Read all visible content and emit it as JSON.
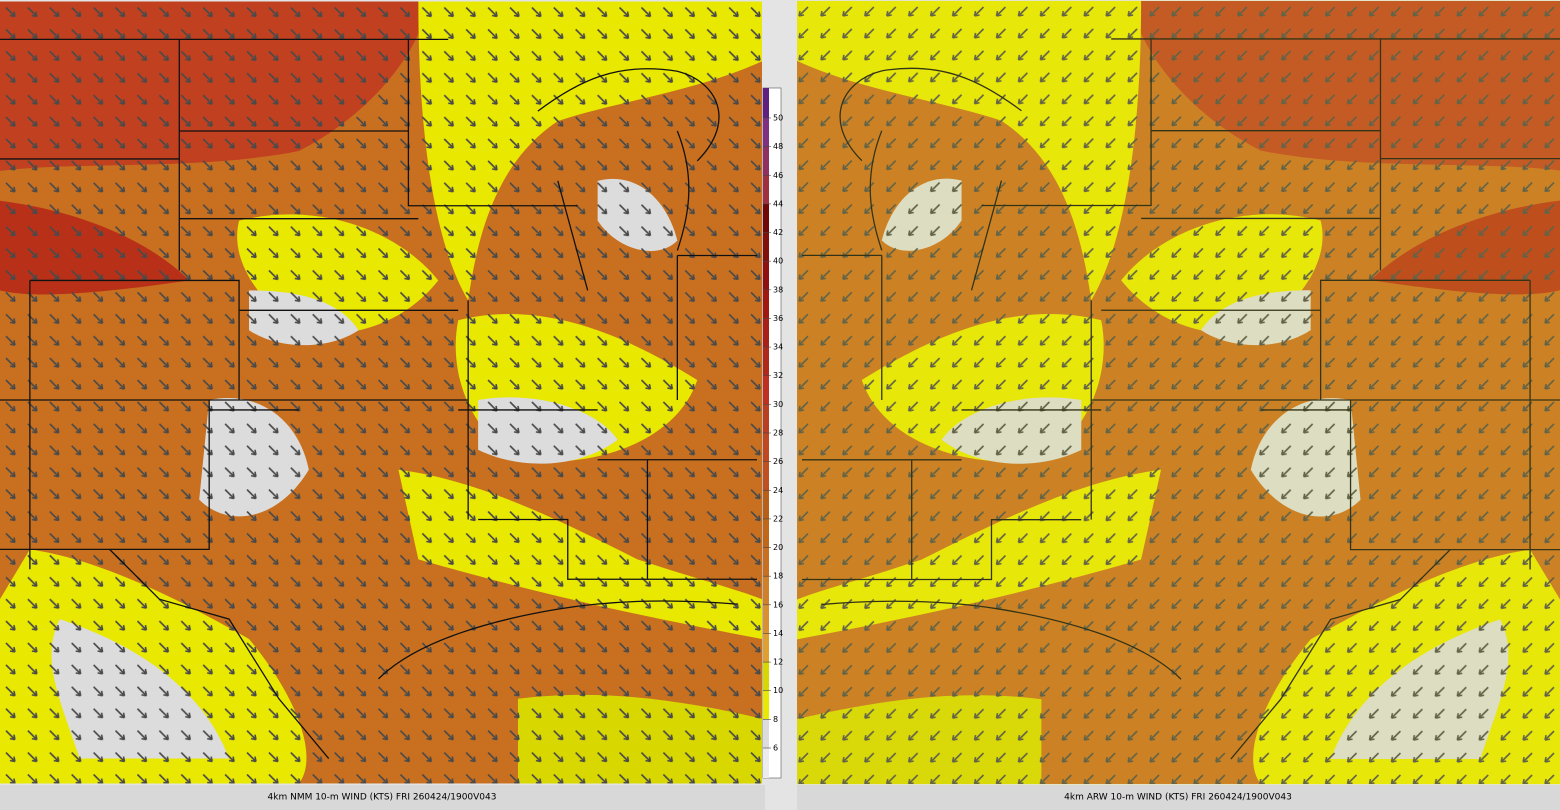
{
  "panels": [
    {
      "caption": "4km NMM 10-m WIND (KTS) FRI 260424/1900V043"
    },
    {
      "caption": "4km ARW 10-m WIND (KTS) FRI 260424/1900V043"
    }
  ],
  "colorbar": {
    "ticks": [
      6,
      8,
      10,
      12,
      14,
      16,
      18,
      20,
      22,
      24,
      26,
      28,
      30,
      32,
      34,
      36,
      38,
      40,
      42,
      44,
      46,
      48,
      50
    ],
    "colors": [
      "#ececec",
      "#dcdcdc",
      "#e8e800",
      "#d8d800",
      "#e0a030",
      "#d89030",
      "#d08028",
      "#c87020",
      "#c06818",
      "#b86018",
      "#c05020",
      "#c04820",
      "#b84020",
      "#c03020",
      "#b02818",
      "#a82018",
      "#a01810",
      "#901010",
      "#801008",
      "#700808",
      "#a03040",
      "#903060",
      "#803080",
      "#602080"
    ]
  }
}
